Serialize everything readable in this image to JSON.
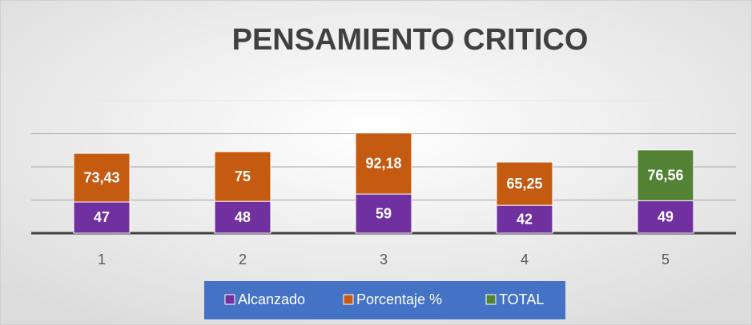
{
  "chart_data": {
    "type": "bar",
    "stacked": true,
    "title": "PENSAMIENTO CRITICO",
    "categories": [
      "1",
      "2",
      "3",
      "4",
      "5"
    ],
    "series": [
      {
        "name": "Alcanzado",
        "color": "#7030a0",
        "values": [
          47,
          48,
          59,
          42,
          49
        ],
        "value_labels": [
          "47",
          "48",
          "59",
          "42",
          "49"
        ]
      },
      {
        "name": "Porcentaje %",
        "color": "#c55a11",
        "values": [
          73.43,
          75,
          92.18,
          65.25,
          null
        ],
        "value_labels": [
          "73,43",
          "75",
          "92,18",
          "65,25",
          null
        ]
      },
      {
        "name": "TOTAL",
        "color": "#548235",
        "values": [
          null,
          null,
          null,
          null,
          76.56
        ],
        "value_labels": [
          null,
          null,
          null,
          null,
          "76,56"
        ]
      }
    ],
    "ylim": [
      0,
      200
    ],
    "yticks": [
      0,
      50,
      100,
      150,
      200
    ],
    "grid": true,
    "legend": "bottom"
  }
}
